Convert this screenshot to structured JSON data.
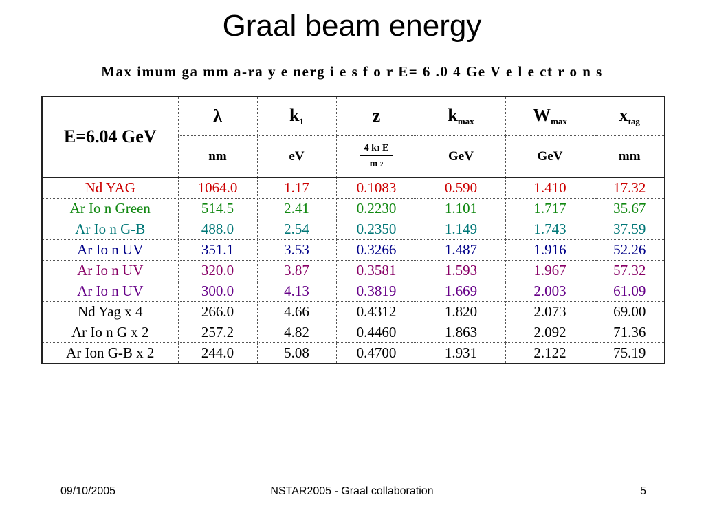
{
  "slide": {
    "title": "Graal beam energy",
    "subtitle": "Max imum    ga mm  a-ra y  e nerg   i e s  f o r  E= 6 .0 4  Ge V  e l e ct r o n s"
  },
  "table": {
    "energy_label": "E=6.04 GeV",
    "headers": [
      {
        "main": "λ",
        "sub": ""
      },
      {
        "main": "k",
        "sub": "1"
      },
      {
        "main": "z",
        "sub": ""
      },
      {
        "main": "k",
        "sub": "max"
      },
      {
        "main": "W",
        "sub": "max"
      },
      {
        "main": "x",
        "sub": "tag"
      }
    ],
    "units": [
      "nm",
      "eV",
      "",
      "GeV",
      "GeV",
      "mm"
    ],
    "z_unit": {
      "numerator": "4 k",
      "num_sub": "1",
      "numerator_tail": "E",
      "denominator": "m",
      "den_sup": "2"
    },
    "rows": [
      {
        "laser": "Nd YAG",
        "color": "#cc0000",
        "values": [
          "1064.0",
          "1.17",
          "0.1083",
          "0.590",
          "1.410",
          "17.32"
        ]
      },
      {
        "laser": "Ar Io n Green",
        "color": "#118811",
        "values": [
          "514.5",
          "2.41",
          "0.2230",
          "1.101",
          "1.717",
          "35.67"
        ]
      },
      {
        "laser": "Ar Io n G-B",
        "color": "#007777",
        "values": [
          "488.0",
          "2.54",
          "0.2350",
          "1.149",
          "1.743",
          "37.59"
        ]
      },
      {
        "laser": "Ar Io n UV",
        "color": "#000088",
        "values": [
          "351.1",
          "3.53",
          "0.3266",
          "1.487",
          "1.916",
          "52.26"
        ]
      },
      {
        "laser": "Ar Io n UV",
        "color": "#880066",
        "values": [
          "320.0",
          "3.87",
          "0.3581",
          "1.593",
          "1.967",
          "57.32"
        ]
      },
      {
        "laser": "Ar Io n UV",
        "color": "#660088",
        "values": [
          "300.0",
          "4.13",
          "0.3819",
          "1.669",
          "2.003",
          "61.09"
        ]
      },
      {
        "laser": "Nd Yag  x 4",
        "color": "#000000",
        "values": [
          "266.0",
          "4.66",
          "0.4312",
          "1.820",
          "2.073",
          "69.00"
        ]
      },
      {
        "laser": "Ar Io n G x 2",
        "color": "#000000",
        "values": [
          "257.2",
          "4.82",
          "0.4460",
          "1.863",
          "2.092",
          "71.36"
        ]
      },
      {
        "laser": "Ar Ion G-B x 2",
        "color": "#000000",
        "values": [
          "244.0",
          "5.08",
          "0.4700",
          "1.931",
          "2.122",
          "75.19"
        ]
      }
    ]
  },
  "footer": {
    "date": "09/10/2005",
    "center": "NSTAR2005 - Graal collaboration",
    "page": "5"
  }
}
